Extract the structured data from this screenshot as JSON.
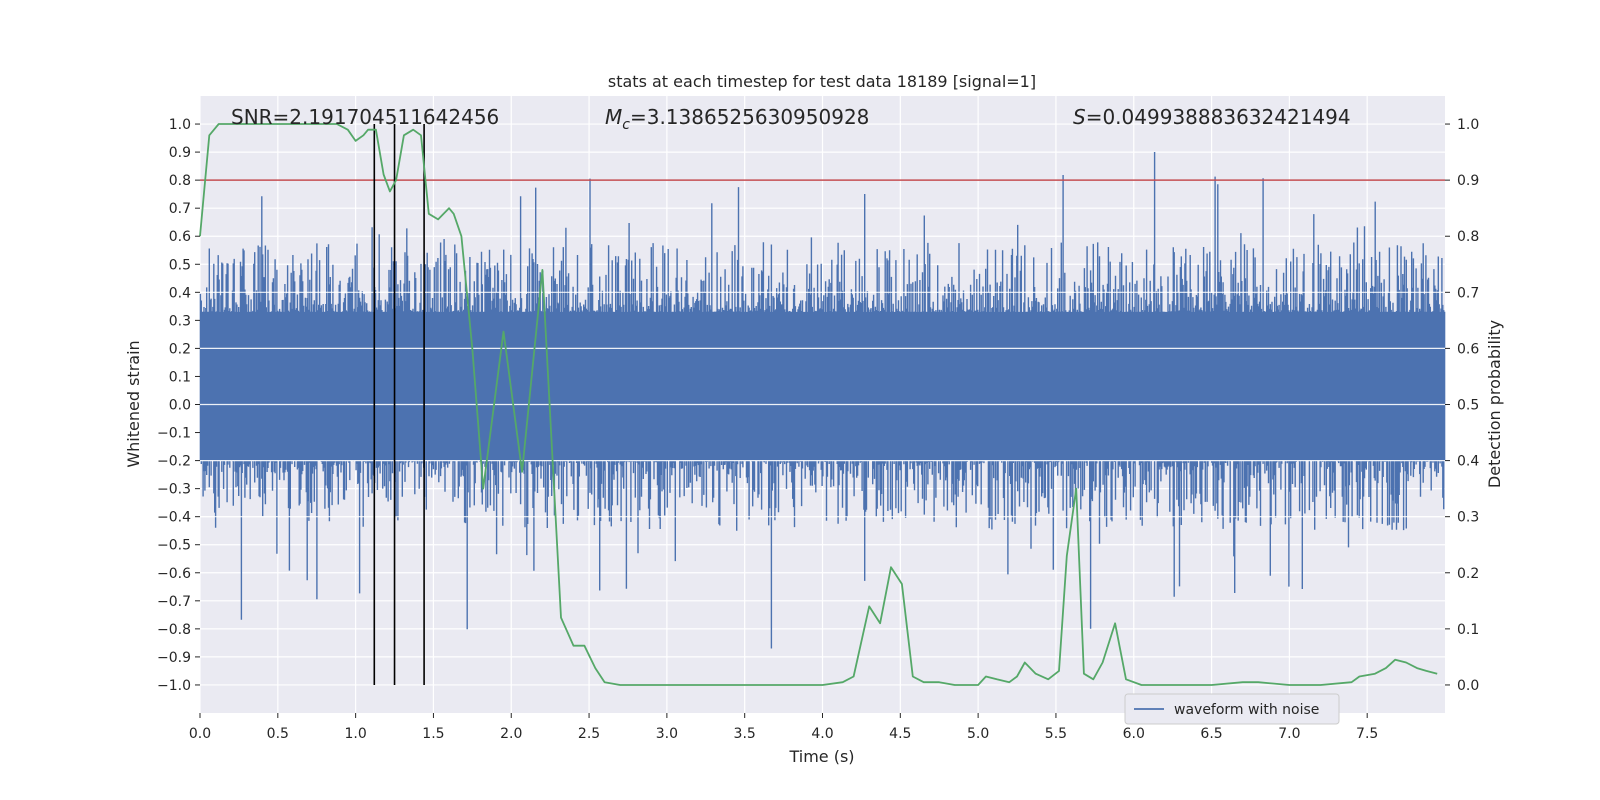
{
  "chart_data": {
    "type": "line",
    "title": "stats at each timestep for test data 18189 [signal=1]",
    "xlabel": "Time (s)",
    "ylabel": "Whitened strain",
    "y2label": "Detection probability",
    "xlim": [
      0.0,
      8.0
    ],
    "ylim": [
      -1.1,
      1.1
    ],
    "y2lim": [
      -0.05,
      1.05
    ],
    "xticks": [
      0.0,
      0.5,
      1.0,
      1.5,
      2.0,
      2.5,
      3.0,
      3.5,
      4.0,
      4.5,
      5.0,
      5.5,
      6.0,
      6.5,
      7.0,
      7.5
    ],
    "xtick_labels": [
      "0.0",
      "0.5",
      "1.0",
      "1.5",
      "2.0",
      "2.5",
      "3.0",
      "3.5",
      "4.0",
      "4.5",
      "5.0",
      "5.5",
      "6.0",
      "6.5",
      "7.0",
      "7.5"
    ],
    "yticks": [
      1.0,
      0.9,
      0.8,
      0.7,
      0.6,
      0.5,
      0.4,
      0.3,
      0.2,
      0.1,
      0.0,
      -0.1,
      -0.2,
      -0.3,
      -0.4,
      -0.5,
      -0.6,
      -0.7,
      -0.8,
      -0.9,
      -1.0
    ],
    "ytick_labels": [
      "1.0",
      "0.9",
      "0.8",
      "0.7",
      "0.6",
      "0.5",
      "0.4",
      "0.3",
      "0.2",
      "0.1",
      "0.0",
      "−0.1",
      "−0.2",
      "−0.3",
      "−0.4",
      "−0.5",
      "−0.6",
      "−0.7",
      "−0.8",
      "−0.9",
      "−1.0"
    ],
    "y2ticks": [
      1.0,
      0.9,
      0.8,
      0.7,
      0.6,
      0.5,
      0.4,
      0.3,
      0.2,
      0.1,
      0.0
    ],
    "y2tick_labels": [
      "1.0",
      "0.9",
      "0.8",
      "0.7",
      "0.6",
      "0.5",
      "0.4",
      "0.3",
      "0.2",
      "0.1",
      "0.0"
    ],
    "annotations": {
      "snr": "SNR=2.191704511642456",
      "mc_symbol": "M",
      "mc_sub": "c",
      "mc_value": "=3.1386525630950928",
      "s_symbol": "S",
      "s_value": "=0.049938883632421494"
    },
    "legend": {
      "label": "waveform with noise",
      "position": "lower-right"
    },
    "threshold": {
      "axis": "y2",
      "value": 0.9,
      "color": "#c44e52"
    },
    "vlines": [
      1.12,
      1.25,
      1.44
    ],
    "waveform": {
      "name": "waveform with noise",
      "color": "#4c72b0",
      "duration": 8.0,
      "samples": 1400,
      "core_band": [
        -0.2,
        0.33
      ],
      "spike_max": 1.0
    },
    "series": [
      {
        "name": "detection probability",
        "axis": "y2",
        "color": "#55a868",
        "x": [
          0.0,
          0.06,
          0.12,
          0.2,
          0.3,
          0.4,
          0.5,
          0.6,
          0.7,
          0.8,
          0.88,
          0.95,
          1.0,
          1.05,
          1.08,
          1.13,
          1.18,
          1.22,
          1.26,
          1.31,
          1.37,
          1.42,
          1.47,
          1.53,
          1.6,
          1.63,
          1.68,
          1.75,
          1.82,
          1.95,
          2.07,
          2.2,
          2.32,
          2.4,
          2.47,
          2.54,
          2.6,
          2.7,
          3.0,
          3.5,
          4.0,
          4.13,
          4.2,
          4.3,
          4.37,
          4.44,
          4.51,
          4.58,
          4.65,
          4.75,
          4.85,
          4.95,
          5.0,
          5.05,
          5.12,
          5.2,
          5.25,
          5.3,
          5.37,
          5.45,
          5.52,
          5.57,
          5.63,
          5.68,
          5.74,
          5.8,
          5.88,
          5.95,
          6.05,
          6.2,
          6.5,
          6.7,
          6.8,
          7.0,
          7.2,
          7.4,
          7.45,
          7.55,
          7.62,
          7.68,
          7.75,
          7.82,
          7.88,
          7.95
        ],
        "y": [
          0.8,
          0.98,
          1.0,
          1.0,
          1.0,
          1.0,
          1.0,
          1.0,
          1.0,
          1.0,
          1.0,
          0.99,
          0.97,
          0.98,
          0.99,
          0.99,
          0.91,
          0.88,
          0.9,
          0.98,
          0.99,
          0.98,
          0.84,
          0.83,
          0.85,
          0.84,
          0.8,
          0.6,
          0.35,
          0.63,
          0.38,
          0.74,
          0.12,
          0.07,
          0.07,
          0.03,
          0.005,
          0.0,
          0.0,
          0.0,
          0.0,
          0.005,
          0.015,
          0.14,
          0.11,
          0.21,
          0.18,
          0.015,
          0.005,
          0.005,
          0.0,
          0.0,
          0.0,
          0.015,
          0.01,
          0.005,
          0.015,
          0.04,
          0.02,
          0.01,
          0.025,
          0.23,
          0.35,
          0.02,
          0.01,
          0.04,
          0.11,
          0.01,
          0.0,
          0.0,
          0.0,
          0.005,
          0.005,
          0.0,
          0.0,
          0.005,
          0.015,
          0.02,
          0.03,
          0.045,
          0.04,
          0.03,
          0.025,
          0.02
        ]
      }
    ]
  }
}
